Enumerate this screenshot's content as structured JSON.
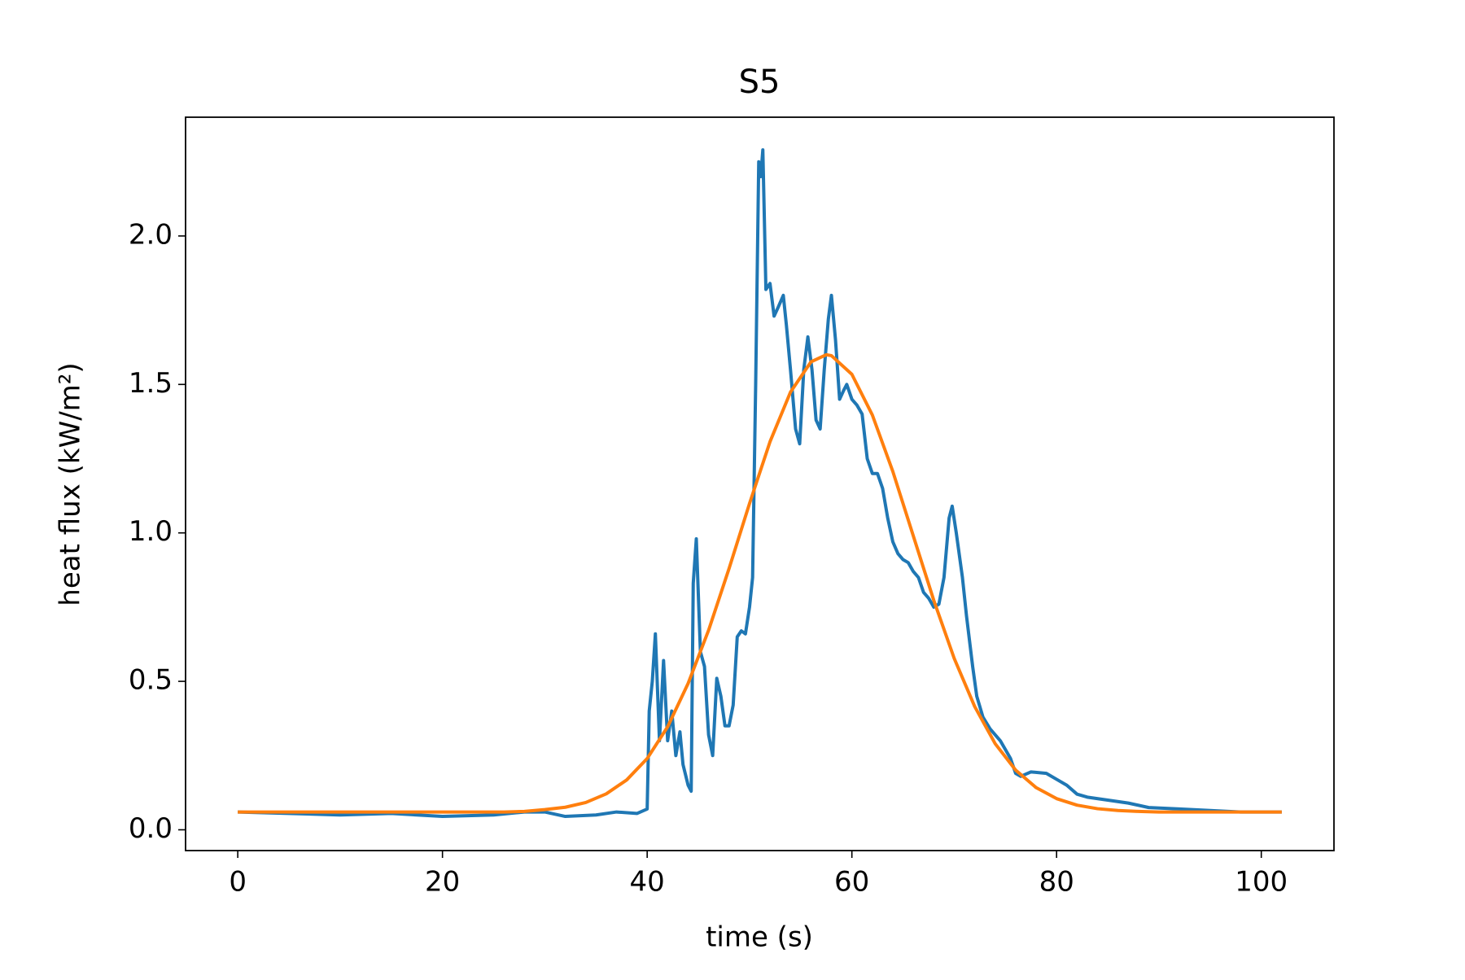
{
  "chart_data": {
    "type": "line",
    "title": "S5",
    "xlabel": "time (s)",
    "ylabel": "heat flux (kW/m²)",
    "xlim": [
      -5.1,
      107.1
    ],
    "xticks": [
      0,
      20,
      40,
      60,
      80,
      100
    ],
    "ylim": [
      -0.07,
      2.4
    ],
    "yticks": [
      {
        "value": 0,
        "label": "0.0"
      },
      {
        "value": 0.5,
        "label": "0.5"
      },
      {
        "value": 1,
        "label": "1.0"
      },
      {
        "value": 1.5,
        "label": "1.5"
      },
      {
        "value": 2,
        "label": "2.0"
      }
    ],
    "grid": false,
    "series": [
      {
        "color": "#1f77b4",
        "x": [
          0,
          5,
          10,
          15,
          20,
          25,
          28,
          30,
          32,
          35,
          37,
          39,
          40,
          40.2,
          40.5,
          40.8,
          41.2,
          41.6,
          42,
          42.4,
          42.8,
          43.2,
          43.5,
          44,
          44.3,
          44.5,
          44.8,
          45.2,
          45.6,
          46,
          46.4,
          46.8,
          47.2,
          47.6,
          48,
          48.4,
          48.8,
          49.2,
          49.6,
          50,
          50.3,
          50.6,
          50.9,
          51.1,
          51.3,
          51.6,
          52,
          52.4,
          52.8,
          53.3,
          53.6,
          54,
          54.5,
          54.9,
          55.3,
          55.7,
          56.1,
          56.5,
          56.9,
          57.3,
          57.7,
          58,
          58.4,
          58.8,
          59.2,
          59.5,
          60,
          60.5,
          61,
          61.5,
          62,
          62.5,
          63,
          63.5,
          64,
          64.5,
          65,
          65.5,
          66,
          66.5,
          67,
          67.5,
          68,
          68.5,
          69,
          69.5,
          69.8,
          70.2,
          70.8,
          71.2,
          71.8,
          72.2,
          72.8,
          73.5,
          74.5,
          75.5,
          76,
          76.5,
          77.5,
          79,
          80,
          81,
          82,
          83,
          85,
          87,
          89,
          92,
          95,
          98,
          100,
          102
        ],
        "values": [
          0.06,
          0.055,
          0.05,
          0.055,
          0.045,
          0.05,
          0.06,
          0.06,
          0.045,
          0.05,
          0.06,
          0.055,
          0.07,
          0.4,
          0.5,
          0.66,
          0.3,
          0.57,
          0.3,
          0.4,
          0.25,
          0.33,
          0.22,
          0.15,
          0.13,
          0.83,
          0.98,
          0.6,
          0.55,
          0.32,
          0.25,
          0.51,
          0.45,
          0.35,
          0.35,
          0.42,
          0.65,
          0.67,
          0.66,
          0.75,
          0.85,
          1.5,
          2.25,
          2.2,
          2.29,
          1.82,
          1.84,
          1.73,
          1.76,
          1.8,
          1.7,
          1.55,
          1.35,
          1.3,
          1.55,
          1.66,
          1.55,
          1.38,
          1.35,
          1.55,
          1.72,
          1.8,
          1.65,
          1.45,
          1.48,
          1.5,
          1.45,
          1.43,
          1.4,
          1.25,
          1.2,
          1.2,
          1.15,
          1.05,
          0.97,
          0.93,
          0.91,
          0.9,
          0.87,
          0.85,
          0.8,
          0.78,
          0.75,
          0.76,
          0.85,
          1.05,
          1.09,
          1.0,
          0.85,
          0.72,
          0.55,
          0.45,
          0.38,
          0.34,
          0.3,
          0.24,
          0.19,
          0.18,
          0.195,
          0.19,
          0.17,
          0.15,
          0.12,
          0.11,
          0.1,
          0.09,
          0.075,
          0.07,
          0.065,
          0.06,
          0.06,
          0.06
        ]
      },
      {
        "color": "#ff7f0e",
        "x": [
          0,
          10,
          20,
          26,
          28,
          30,
          32,
          34,
          36,
          38,
          40,
          42,
          44,
          46,
          48,
          50,
          52,
          54,
          56,
          57.5,
          58,
          60,
          62,
          64,
          66,
          68,
          70,
          72,
          74,
          76,
          78,
          80,
          82,
          84,
          86,
          88,
          90,
          100,
          102
        ],
        "values": [
          0.06,
          0.06,
          0.06,
          0.06,
          0.062,
          0.068,
          0.076,
          0.092,
          0.121,
          0.168,
          0.24,
          0.347,
          0.493,
          0.672,
          0.88,
          1.099,
          1.307,
          1.474,
          1.576,
          1.6,
          1.597,
          1.534,
          1.397,
          1.207,
          0.99,
          0.773,
          0.577,
          0.415,
          0.29,
          0.201,
          0.142,
          0.105,
          0.083,
          0.071,
          0.065,
          0.062,
          0.06,
          0.06,
          0.06
        ]
      }
    ]
  }
}
